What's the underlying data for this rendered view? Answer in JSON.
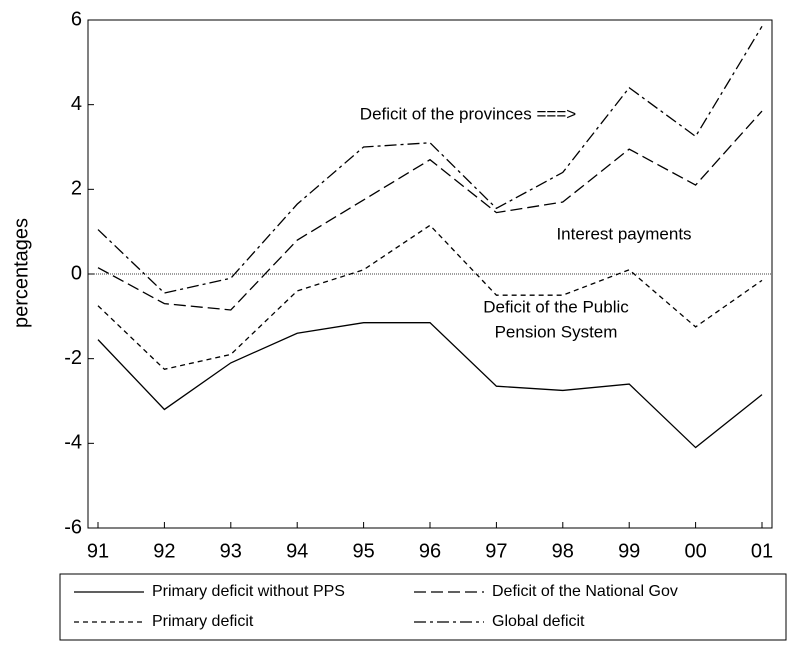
{
  "chart_data": {
    "type": "line",
    "y_label": "percentages",
    "categories": [
      "91",
      "92",
      "93",
      "94",
      "95",
      "96",
      "97",
      "98",
      "99",
      "00",
      "01"
    ],
    "series": [
      {
        "name": "Primary deficit without PPS",
        "color": "#000000",
        "values": [
          -1.55,
          -3.2,
          -2.1,
          -1.4,
          -1.15,
          -1.15,
          -2.65,
          -2.75,
          -2.6,
          -4.1,
          -2.85
        ]
      },
      {
        "name": "Deficit of the National Gov",
        "color": "#000000",
        "values": [
          0.15,
          -0.7,
          -0.85,
          0.8,
          1.75,
          2.7,
          1.45,
          1.7,
          2.95,
          2.1,
          3.85
        ]
      },
      {
        "name": "Primary deficit",
        "color": "#000000",
        "values": [
          -0.75,
          -2.25,
          -1.9,
          -0.4,
          0.1,
          1.15,
          -0.5,
          -0.5,
          0.1,
          -1.25,
          -0.15
        ]
      },
      {
        "name": "Global deficit",
        "color": "#000000",
        "values": [
          1.05,
          -0.45,
          -0.1,
          1.65,
          3.0,
          3.1,
          1.55,
          2.4,
          4.4,
          3.25,
          5.85
        ]
      }
    ],
    "annotations": [
      "Deficit of the provinces ===>",
      "Interest payments",
      "Deficit of the Public",
      "Pension   System"
    ],
    "ylim": [
      -6,
      6
    ],
    "yticks": [
      -6,
      -4,
      -2,
      0,
      2,
      4,
      6
    ],
    "grid": false,
    "legend": "bottom"
  }
}
